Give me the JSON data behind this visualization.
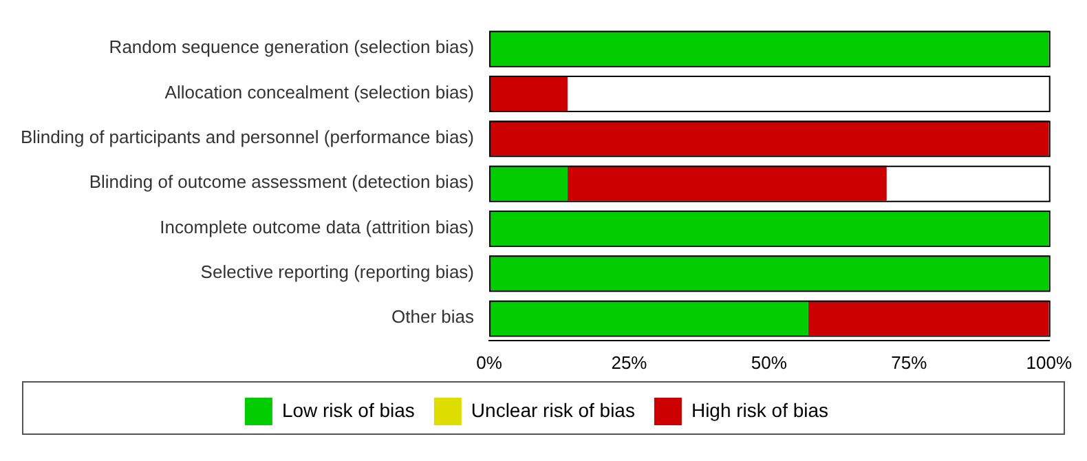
{
  "chart_data": {
    "type": "bar",
    "orientation": "horizontal",
    "stacked": true,
    "categories": [
      "Random sequence generation (selection bias)",
      "Allocation concealment (selection bias)",
      "Blinding of participants and personnel (performance bias)",
      "Blinding of outcome assessment (detection bias)",
      "Incomplete outcome data (attrition bias)",
      "Selective reporting (reporting bias)",
      "Other bias"
    ],
    "series": [
      {
        "name": "Low risk of bias",
        "color": "#00cc00",
        "values": [
          100,
          null,
          null,
          14,
          100,
          100,
          57
        ]
      },
      {
        "name": "Unclear risk of bias",
        "color": "#dddd00",
        "values": [
          null,
          null,
          null,
          null,
          null,
          null,
          null
        ]
      },
      {
        "name": "High risk of bias",
        "color": "#cc0000",
        "values": [
          null,
          14,
          100,
          57,
          null,
          null,
          43
        ]
      }
    ],
    "xlim": [
      0,
      100
    ],
    "xticks": [
      {
        "value": 0,
        "label": "0%"
      },
      {
        "value": 25,
        "label": "25%"
      },
      {
        "value": 50,
        "label": "50%"
      },
      {
        "value": 75,
        "label": "75%"
      },
      {
        "value": 100,
        "label": "100%"
      }
    ],
    "grid": false,
    "legend": "bottom"
  }
}
